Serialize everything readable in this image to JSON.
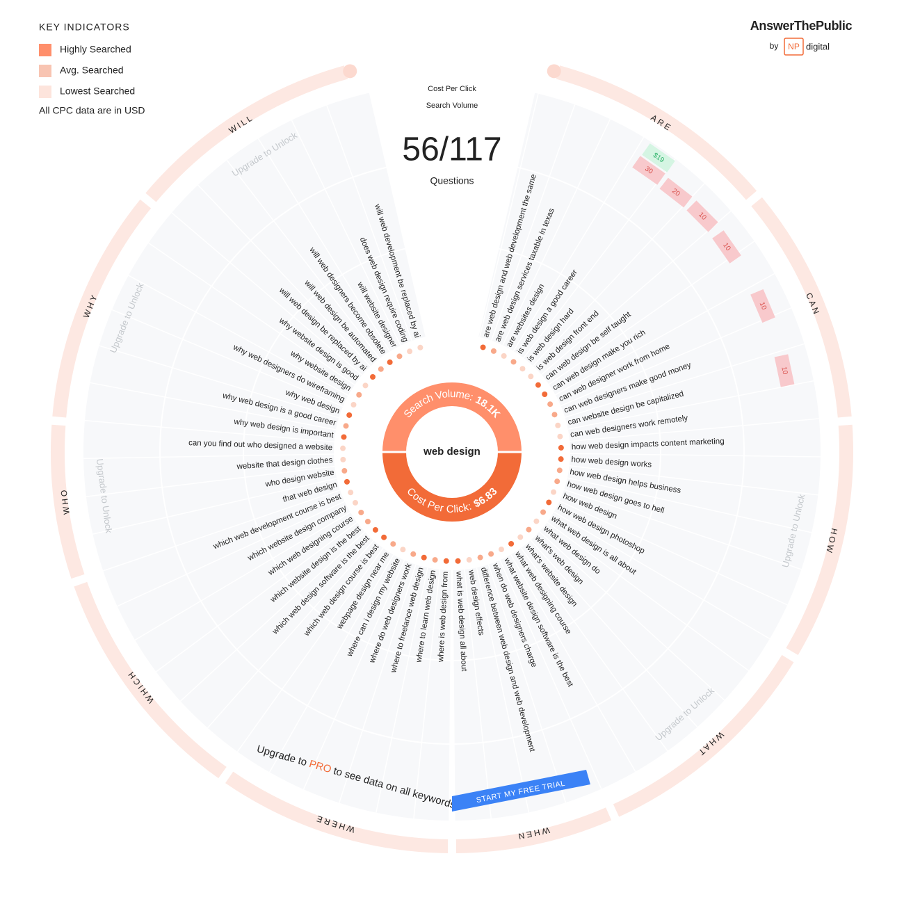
{
  "legend": {
    "title": "KEY INDICATORS",
    "items": [
      {
        "label": "Highly Searched",
        "color": "#ff8f6b"
      },
      {
        "label": "Avg. Searched",
        "color": "#f8c4b2"
      },
      {
        "label": "Lowest Searched",
        "color": "#fde4dc"
      }
    ],
    "note": "All CPC data are in USD"
  },
  "brand": {
    "name": "AnswerThePublic",
    "by": "by",
    "logo": "NP",
    "suffix": "digital"
  },
  "header": {
    "cpc_label": "Cost Per Click",
    "volume_label": "Search Volume",
    "count": "56/117",
    "count_label": "Questions"
  },
  "center": {
    "keyword": "web design",
    "volume_label": "Search Volume:",
    "volume": "18.1K",
    "cpc_label": "Cost Per Click:",
    "cpc": "$6.83"
  },
  "sections": [
    "ARE",
    "CAN",
    "HOW",
    "WHAT",
    "WHEN",
    "WHERE",
    "WHICH",
    "WHO",
    "WHY",
    "WILL"
  ],
  "lock_label": "Upgrade to Unlock",
  "questions": [
    {
      "text": "are web design and web development the same",
      "level": 1
    },
    {
      "text": "are web design services taxable in texas",
      "level": 2
    },
    {
      "text": "are websites design",
      "level": 3
    },
    {
      "text": "is web design a good career",
      "level": 2
    },
    {
      "text": "is web design hard",
      "level": 3
    },
    {
      "text": "is web design front end",
      "level": 3
    },
    {
      "text": "can web design be self taught",
      "level": 1
    },
    {
      "text": "can web design make you rich",
      "level": 1
    },
    {
      "text": "can web designer work from home",
      "level": 2
    },
    {
      "text": "can web designers make good money",
      "level": 2
    },
    {
      "text": "can website design be capitalized",
      "level": 3
    },
    {
      "text": "can web designers work remotely",
      "level": 3
    },
    {
      "text": "how web design impacts content marketing",
      "level": 1
    },
    {
      "text": "how web design works",
      "level": 1
    },
    {
      "text": "how web design helps business",
      "level": 2
    },
    {
      "text": "how web design goes to hell",
      "level": 2
    },
    {
      "text": "how web design",
      "level": 3
    },
    {
      "text": "how web design photoshop",
      "level": 1
    },
    {
      "text": "what web design is all about",
      "level": 2
    },
    {
      "text": "what web design do",
      "level": 3
    },
    {
      "text": "what's web design",
      "level": 2
    },
    {
      "text": "what's website design",
      "level": 3
    },
    {
      "text": "what web designing course",
      "level": 1
    },
    {
      "text": "what website design software is the best",
      "level": 3
    },
    {
      "text": "when do web designers charge",
      "level": 2
    },
    {
      "text": "difference between web design and web development",
      "level": 2
    },
    {
      "text": "web design effects",
      "level": 3
    },
    {
      "text": "what is web design all about",
      "level": 1
    },
    {
      "text": "where is web design from",
      "level": 1
    },
    {
      "text": "where to learn web design",
      "level": 2
    },
    {
      "text": "where to freelance web design",
      "level": 1
    },
    {
      "text": "where do web designers work",
      "level": 2
    },
    {
      "text": "where can i design my website",
      "level": 3
    },
    {
      "text": "webpage design near me",
      "level": 2
    },
    {
      "text": "which web design course is best",
      "level": 1
    },
    {
      "text": "which web design software is the best",
      "level": 1
    },
    {
      "text": "which website design is the best",
      "level": 2
    },
    {
      "text": "which web designing course",
      "level": 2
    },
    {
      "text": "which website design company",
      "level": 3
    },
    {
      "text": "which web development course is best",
      "level": 3
    },
    {
      "text": "that web design",
      "level": 1
    },
    {
      "text": "who design website",
      "level": 2
    },
    {
      "text": "website that design clothes",
      "level": 3
    },
    {
      "text": "can you find out who designed a website",
      "level": 3
    },
    {
      "text": "why web design is important",
      "level": 1
    },
    {
      "text": "why web design is a good career",
      "level": 2
    },
    {
      "text": "why web design",
      "level": 1
    },
    {
      "text": "why web designers do wireframing",
      "level": 3
    },
    {
      "text": "why website design",
      "level": 2
    },
    {
      "text": "why website design is good",
      "level": 3
    },
    {
      "text": "will web design be replaced by ai",
      "level": 1
    },
    {
      "text": "will web design be automated",
      "level": 2
    },
    {
      "text": "will web designers become obsolete",
      "level": 1
    },
    {
      "text": "will website designer",
      "level": 2
    },
    {
      "text": "does web design require coding",
      "level": 3
    },
    {
      "text": "will web development be replaced by ai",
      "level": 3
    }
  ],
  "cpc_badges": [
    "$19"
  ],
  "volume_badges": [
    30,
    20,
    10,
    10,
    10,
    10
  ],
  "upsell": {
    "prefix": "Upgrade to",
    "highlight": "PRO",
    "suffix": "to see data on all keywords",
    "button": "START MY FREE TRIAL"
  }
}
